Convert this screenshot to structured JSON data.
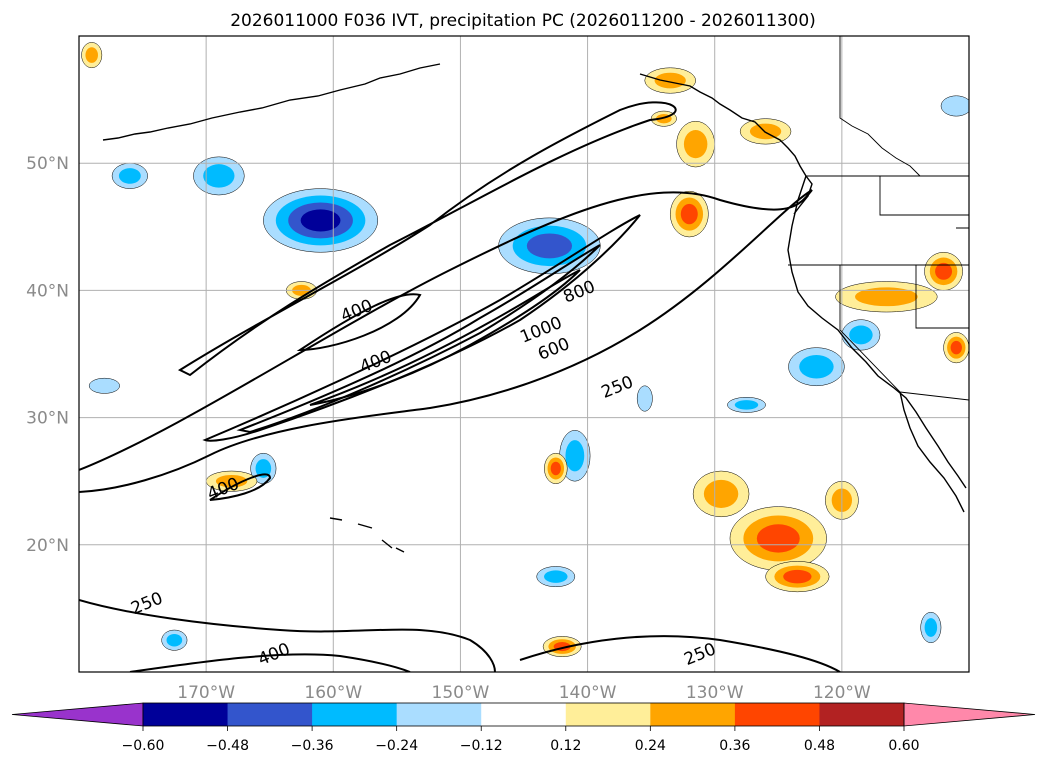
{
  "chart_data": {
    "type": "contour-map",
    "title": "2026011000 F036 IVT, precipitation PC (2026011200 - 2026011300)",
    "lon_range": [
      -180,
      -110
    ],
    "lat_range": [
      10,
      60
    ],
    "lon_ticks": [
      -170,
      -160,
      -150,
      -140,
      -130,
      -120
    ],
    "lon_tick_labels": [
      "170°W",
      "160°W",
      "150°W",
      "140°W",
      "130°W",
      "120°W"
    ],
    "lat_ticks": [
      20,
      30,
      40,
      50
    ],
    "lat_tick_labels": [
      "20°N",
      "30°N",
      "40°N",
      "50°N"
    ],
    "gridlines": true,
    "ivt_contour_levels": [
      250,
      400,
      600,
      800,
      1000
    ],
    "ivt_contour_labels": [
      {
        "text": "400",
        "lon": -158,
        "lat": 38
      },
      {
        "text": "400",
        "lon": -156.5,
        "lat": 34
      },
      {
        "text": "1000",
        "lon": -143.5,
        "lat": 36.5
      },
      {
        "text": "800",
        "lon": -140.5,
        "lat": 39.5
      },
      {
        "text": "600",
        "lon": -142.5,
        "lat": 35
      },
      {
        "text": "250",
        "lon": -137.5,
        "lat": 32
      },
      {
        "text": "400",
        "lon": -168.5,
        "lat": 24
      },
      {
        "text": "250",
        "lon": -174.5,
        "lat": 15
      },
      {
        "text": "400",
        "lon": -164.5,
        "lat": 11
      },
      {
        "text": "250",
        "lon": -131,
        "lat": 11
      }
    ],
    "colorbar": {
      "ticks": [
        "-0.60",
        "-0.48",
        "-0.36",
        "-0.24",
        "-0.12",
        "0.12",
        "0.24",
        "0.36",
        "0.48",
        "0.60"
      ],
      "boundaries": [
        -0.6,
        -0.48,
        -0.36,
        -0.24,
        -0.12,
        0.12,
        0.24,
        0.36,
        0.48,
        0.6
      ],
      "colors": [
        "#9933cc",
        "#000099",
        "#3355cc",
        "#00bbff",
        "#aaddff",
        "#ffffff",
        "#ffee99",
        "#ffa500",
        "#ff4500",
        "#b22222",
        "#ff88aa"
      ],
      "extend": "both"
    },
    "precip_pc_blobs": [
      {
        "lon": -161,
        "lat": 45.5,
        "rlon": 4.5,
        "rlat": 2.5,
        "level": -0.5
      },
      {
        "lon": -143,
        "lat": 43.5,
        "rlon": 4,
        "rlat": 2.2,
        "level": -0.45
      },
      {
        "lon": -169,
        "lat": 49,
        "rlon": 2,
        "rlat": 1.5,
        "level": -0.35
      },
      {
        "lon": -141,
        "lat": 27,
        "rlon": 1.2,
        "rlat": 2,
        "level": -0.35
      },
      {
        "lon": -165.5,
        "lat": 26,
        "rlon": 1,
        "rlat": 1.2,
        "level": -0.25
      },
      {
        "lon": -122,
        "lat": 34,
        "rlon": 2.2,
        "rlat": 1.5,
        "level": -0.3
      },
      {
        "lon": -118.5,
        "lat": 36.5,
        "rlon": 1.5,
        "rlat": 1.2,
        "level": -0.3
      },
      {
        "lon": -142.5,
        "lat": 17.5,
        "rlon": 1.5,
        "rlat": 0.8,
        "level": -0.25
      },
      {
        "lon": -172.5,
        "lat": 12.5,
        "rlon": 1,
        "rlat": 0.8,
        "level": -0.3
      },
      {
        "lon": -178,
        "lat": 32.5,
        "rlon": 1.2,
        "rlat": 0.6,
        "level": -0.2
      },
      {
        "lon": -127.5,
        "lat": 31,
        "rlon": 1.5,
        "rlat": 0.6,
        "level": -0.25
      },
      {
        "lon": -113,
        "lat": 13.5,
        "rlon": 0.8,
        "rlat": 1.2,
        "level": -0.25
      },
      {
        "lon": -135.5,
        "lat": 31.5,
        "rlon": 0.6,
        "rlat": 1,
        "level": -0.2
      },
      {
        "lon": -111,
        "lat": 54.5,
        "rlon": 1.2,
        "rlat": 0.8,
        "level": -0.2
      },
      {
        "lon": -176,
        "lat": 49,
        "rlon": 1.4,
        "rlat": 1,
        "level": -0.25
      },
      {
        "lon": -125,
        "lat": 20.5,
        "rlon": 3.8,
        "rlat": 2.5,
        "level": 0.42
      },
      {
        "lon": -123.5,
        "lat": 17.5,
        "rlon": 2.5,
        "rlat": 1.2,
        "level": 0.38
      },
      {
        "lon": -129.5,
        "lat": 24,
        "rlon": 2.2,
        "rlat": 1.8,
        "level": 0.32
      },
      {
        "lon": -120,
        "lat": 23.5,
        "rlon": 1.3,
        "rlat": 1.5,
        "level": 0.32
      },
      {
        "lon": -116.5,
        "lat": 39.5,
        "rlon": 4,
        "rlat": 1.2,
        "level": 0.35
      },
      {
        "lon": -112,
        "lat": 41.5,
        "rlon": 1.5,
        "rlat": 1.5,
        "level": 0.38
      },
      {
        "lon": -132,
        "lat": 46,
        "rlon": 1.5,
        "rlat": 1.8,
        "level": 0.42
      },
      {
        "lon": -131.5,
        "lat": 51.5,
        "rlon": 1.5,
        "rlat": 1.8,
        "level": 0.35
      },
      {
        "lon": -133.5,
        "lat": 56.5,
        "rlon": 2,
        "rlat": 1,
        "level": 0.3
      },
      {
        "lon": -126,
        "lat": 52.5,
        "rlon": 2,
        "rlat": 1,
        "level": 0.3
      },
      {
        "lon": -142.5,
        "lat": 26,
        "rlon": 0.9,
        "rlat": 1.2,
        "level": 0.42
      },
      {
        "lon": -168,
        "lat": 25,
        "rlon": 2,
        "rlat": 0.8,
        "level": 0.3
      },
      {
        "lon": -162.5,
        "lat": 40,
        "rlon": 1.2,
        "rlat": 0.7,
        "level": 0.3
      },
      {
        "lon": -142,
        "lat": 12,
        "rlon": 1.5,
        "rlat": 0.8,
        "level": 0.42
      },
      {
        "lon": -111,
        "lat": 35.5,
        "rlon": 1,
        "rlat": 1.2,
        "level": 0.38
      },
      {
        "lon": -179,
        "lat": 58.5,
        "rlon": 0.8,
        "rlat": 1,
        "level": 0.3
      },
      {
        "lon": -134,
        "lat": 53.5,
        "rlon": 1,
        "rlat": 0.6,
        "level": 0.3
      }
    ]
  }
}
